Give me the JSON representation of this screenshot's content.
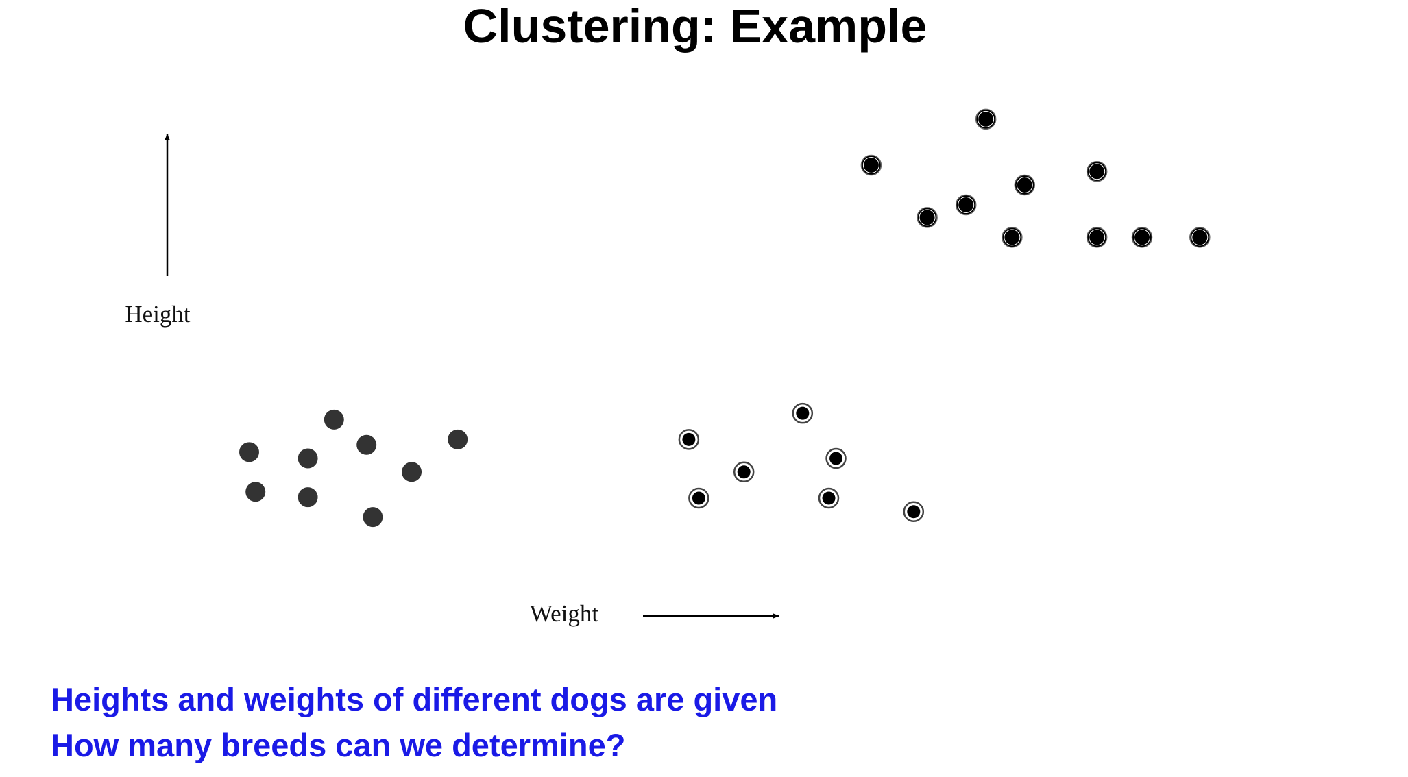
{
  "header": {
    "title": "Clustering: Example"
  },
  "diagram": {
    "y_label": "Height",
    "x_label": "Weight"
  },
  "caption": {
    "lines": [
      "Heights and weights of different dogs are given",
      "How many breeds can we determine?"
    ]
  }
}
